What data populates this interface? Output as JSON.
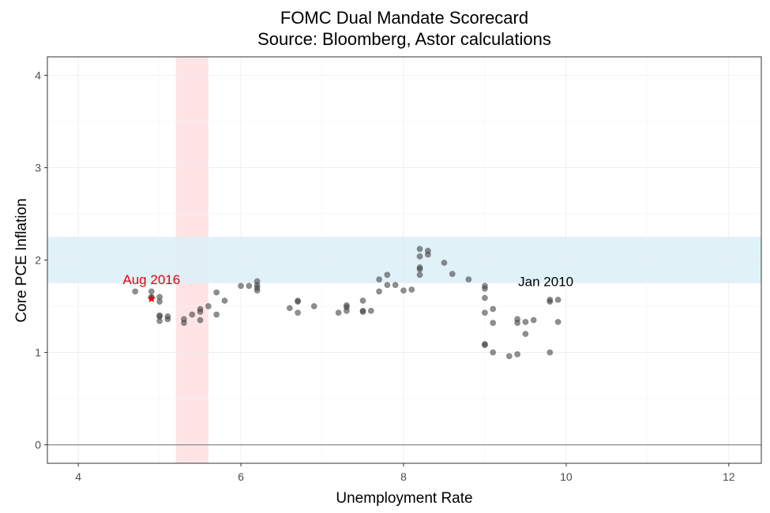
{
  "chart_data": {
    "type": "scatter",
    "title": "FOMC Dual Mandate Scorecard",
    "subtitle": "Source: Bloomberg, Astor calculations",
    "xlabel": "Unemployment Rate",
    "ylabel": "Core PCE Inflation",
    "xlim": [
      3.62,
      12.4
    ],
    "ylim": [
      -0.2,
      4.2
    ],
    "xticks": [
      "4",
      "6",
      "8",
      "10",
      "12"
    ],
    "yticks": [
      "0",
      "1",
      "2",
      "3",
      "4"
    ],
    "grid": true,
    "reference_line_y": 0,
    "bands": [
      {
        "axis": "x",
        "from": 5.2,
        "to": 5.6,
        "color": "#ffe4e6"
      },
      {
        "axis": "y",
        "from": 1.75,
        "to": 2.25,
        "color": "#ddeff6"
      }
    ],
    "colors": {
      "points": "#444444",
      "highlight": "#e8000b",
      "annotation": "#000000"
    },
    "annotations": [
      {
        "text": "Aug 2016",
        "x": 4.9,
        "y": 1.74,
        "color": "#e8000b"
      },
      {
        "text": "Jan 2010",
        "x": 9.75,
        "y": 1.72,
        "color": "#000000"
      }
    ],
    "highlight_point": {
      "x": 4.9,
      "y": 1.58
    },
    "points": [
      {
        "x": 9.8,
        "y": 1.55
      },
      {
        "x": 9.8,
        "y": 1.57
      },
      {
        "x": 9.9,
        "y": 1.57
      },
      {
        "x": 9.9,
        "y": 1.33
      },
      {
        "x": 9.8,
        "y": 1.0
      },
      {
        "x": 9.6,
        "y": 1.35
      },
      {
        "x": 9.5,
        "y": 1.33
      },
      {
        "x": 9.5,
        "y": 1.2
      },
      {
        "x": 9.4,
        "y": 1.36
      },
      {
        "x": 9.4,
        "y": 1.32
      },
      {
        "x": 9.4,
        "y": 0.98
      },
      {
        "x": 9.3,
        "y": 0.96
      },
      {
        "x": 9.1,
        "y": 1.0
      },
      {
        "x": 9.0,
        "y": 1.09
      },
      {
        "x": 9.0,
        "y": 1.08
      },
      {
        "x": 9.1,
        "y": 1.32
      },
      {
        "x": 9.1,
        "y": 1.47
      },
      {
        "x": 9.0,
        "y": 1.43
      },
      {
        "x": 9.0,
        "y": 1.59
      },
      {
        "x": 9.0,
        "y": 1.69
      },
      {
        "x": 9.0,
        "y": 1.72
      },
      {
        "x": 8.8,
        "y": 1.79
      },
      {
        "x": 8.6,
        "y": 1.85
      },
      {
        "x": 8.5,
        "y": 1.97
      },
      {
        "x": 8.3,
        "y": 2.06
      },
      {
        "x": 8.3,
        "y": 2.1
      },
      {
        "x": 8.2,
        "y": 2.12
      },
      {
        "x": 8.2,
        "y": 2.04
      },
      {
        "x": 8.2,
        "y": 1.92
      },
      {
        "x": 8.2,
        "y": 1.9
      },
      {
        "x": 8.2,
        "y": 1.84
      },
      {
        "x": 8.1,
        "y": 1.68
      },
      {
        "x": 8.0,
        "y": 1.67
      },
      {
        "x": 7.9,
        "y": 1.73
      },
      {
        "x": 7.8,
        "y": 1.73
      },
      {
        "x": 7.8,
        "y": 1.84
      },
      {
        "x": 7.7,
        "y": 1.79
      },
      {
        "x": 7.7,
        "y": 1.66
      },
      {
        "x": 7.6,
        "y": 1.45
      },
      {
        "x": 7.5,
        "y": 1.45
      },
      {
        "x": 7.5,
        "y": 1.44
      },
      {
        "x": 7.5,
        "y": 1.56
      },
      {
        "x": 7.3,
        "y": 1.49
      },
      {
        "x": 7.3,
        "y": 1.51
      },
      {
        "x": 7.3,
        "y": 1.45
      },
      {
        "x": 7.2,
        "y": 1.43
      },
      {
        "x": 6.9,
        "y": 1.5
      },
      {
        "x": 6.7,
        "y": 1.55
      },
      {
        "x": 6.7,
        "y": 1.56
      },
      {
        "x": 6.7,
        "y": 1.43
      },
      {
        "x": 6.6,
        "y": 1.48
      },
      {
        "x": 6.2,
        "y": 1.67
      },
      {
        "x": 6.2,
        "y": 1.7
      },
      {
        "x": 6.2,
        "y": 1.73
      },
      {
        "x": 6.2,
        "y": 1.77
      },
      {
        "x": 6.1,
        "y": 1.72
      },
      {
        "x": 6.0,
        "y": 1.72
      },
      {
        "x": 5.8,
        "y": 1.56
      },
      {
        "x": 5.7,
        "y": 1.65
      },
      {
        "x": 5.7,
        "y": 1.41
      },
      {
        "x": 5.6,
        "y": 1.5
      },
      {
        "x": 5.5,
        "y": 1.47
      },
      {
        "x": 5.5,
        "y": 1.44
      },
      {
        "x": 5.5,
        "y": 1.35
      },
      {
        "x": 5.4,
        "y": 1.41
      },
      {
        "x": 5.3,
        "y": 1.36
      },
      {
        "x": 5.3,
        "y": 1.32
      },
      {
        "x": 5.1,
        "y": 1.36
      },
      {
        "x": 5.1,
        "y": 1.39
      },
      {
        "x": 5.0,
        "y": 1.34
      },
      {
        "x": 5.0,
        "y": 1.39
      },
      {
        "x": 5.0,
        "y": 1.4
      },
      {
        "x": 5.0,
        "y": 1.55
      },
      {
        "x": 5.0,
        "y": 1.6
      },
      {
        "x": 4.9,
        "y": 1.66
      },
      {
        "x": 4.9,
        "y": 1.59
      },
      {
        "x": 4.9,
        "y": 1.6
      },
      {
        "x": 4.7,
        "y": 1.66
      }
    ]
  }
}
